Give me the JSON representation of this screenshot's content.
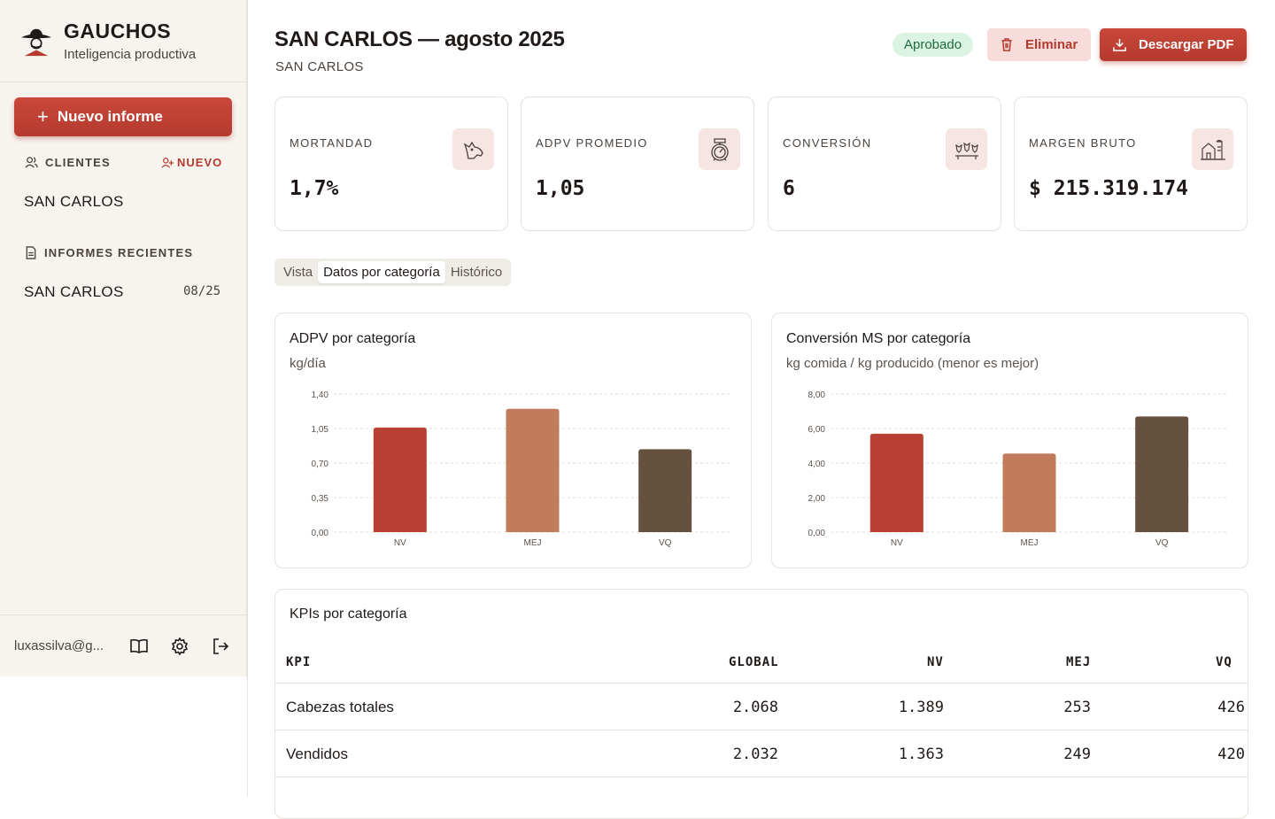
{
  "brand": {
    "name": "GAUCHOS",
    "subtitle": "Inteligencia productiva"
  },
  "sidebar": {
    "new_button": "Nuevo informe",
    "clients_heading": "CLIENTES",
    "new_client_link": "NUEVO",
    "clients": [
      "SAN CARLOS"
    ],
    "reports_heading": "INFORMES RECIENTES",
    "reports": [
      {
        "name": "SAN CARLOS",
        "date": "08/25"
      }
    ],
    "user_email": "luxassilva@g..."
  },
  "header": {
    "title": "SAN CARLOS — agosto 2025",
    "subtitle": "SAN CARLOS",
    "status_badge": "Aprobado",
    "delete_button": "Eliminar",
    "download_button": "Descargar PDF"
  },
  "kpis": [
    {
      "label": "MORTANDAD",
      "value": "1,7%",
      "icon": "cow-head-icon"
    },
    {
      "label": "ADPV PROMEDIO",
      "value": "1,05",
      "icon": "scale-icon"
    },
    {
      "label": "CONVERSIÓN",
      "value": "6",
      "icon": "herd-icon"
    },
    {
      "label": "MARGEN BRUTO",
      "value": "$ 215.319.174",
      "icon": "barn-icon"
    }
  ],
  "tabs": [
    {
      "label": "Vista",
      "active": false
    },
    {
      "label": "Datos por categoría",
      "active": true
    },
    {
      "label": "Histórico",
      "active": false
    }
  ],
  "colors": {
    "accent": "#b53a2e",
    "nv": "#b94033",
    "mej": "#c17c5c",
    "vq": "#66513f"
  },
  "chart_data": [
    {
      "type": "bar",
      "title": "ADPV por categoría",
      "subtitle": "kg/día",
      "categories": [
        "NV",
        "MEJ",
        "VQ"
      ],
      "values": [
        1.06,
        1.25,
        0.84
      ],
      "ylim": [
        0,
        1.4
      ],
      "yticks": [
        "0,00",
        "0,35",
        "0,70",
        "1,05",
        "1,40"
      ],
      "grid": true
    },
    {
      "type": "bar",
      "title": "Conversión MS por categoría",
      "subtitle": "kg comida / kg producido (menor es mejor)",
      "categories": [
        "NV",
        "MEJ",
        "VQ"
      ],
      "values": [
        5.7,
        4.55,
        6.7
      ],
      "ylim": [
        0,
        8
      ],
      "yticks": [
        "0,00",
        "2,00",
        "4,00",
        "6,00",
        "8,00"
      ],
      "grid": true
    }
  ],
  "table": {
    "title": "KPIs por categoría",
    "headers": [
      "KPI",
      "GLOBAL",
      "NV",
      "MEJ",
      "VQ"
    ],
    "rows": [
      [
        "Cabezas totales",
        "2.068",
        "1.389",
        "253",
        "426"
      ],
      [
        "Vendidos",
        "2.032",
        "1.363",
        "249",
        "420"
      ]
    ]
  }
}
